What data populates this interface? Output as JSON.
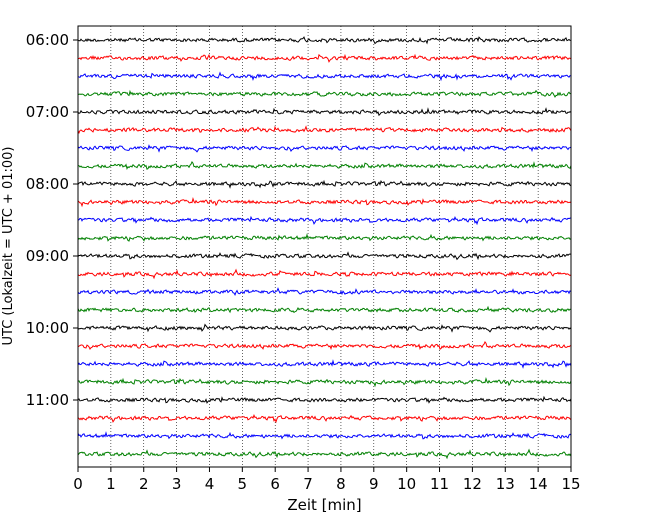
{
  "chart_data": {
    "type": "line",
    "subtype": "helicorder",
    "xlabel": "Zeit  [min]",
    "ylabel": "UTC (Lokalzeit = UTC + 01:00)",
    "xlim": [
      0,
      15
    ],
    "x_ticks": [
      "0",
      "1",
      "2",
      "3",
      "4",
      "5",
      "6",
      "7",
      "8",
      "9",
      "10",
      "11",
      "12",
      "13",
      "14",
      "15"
    ],
    "y_ticks": [
      "06:00",
      "07:00",
      "08:00",
      "09:00",
      "10:00",
      "11:00"
    ],
    "grid": {
      "x": true,
      "y": false,
      "style": "dotted"
    },
    "trace_interval_min": 15,
    "trace_start": "06:00",
    "trace_end": "11:45",
    "trace_colors": [
      "#000000",
      "#ff0000",
      "#0000ff",
      "#008000"
    ],
    "trace_count": 24
  }
}
